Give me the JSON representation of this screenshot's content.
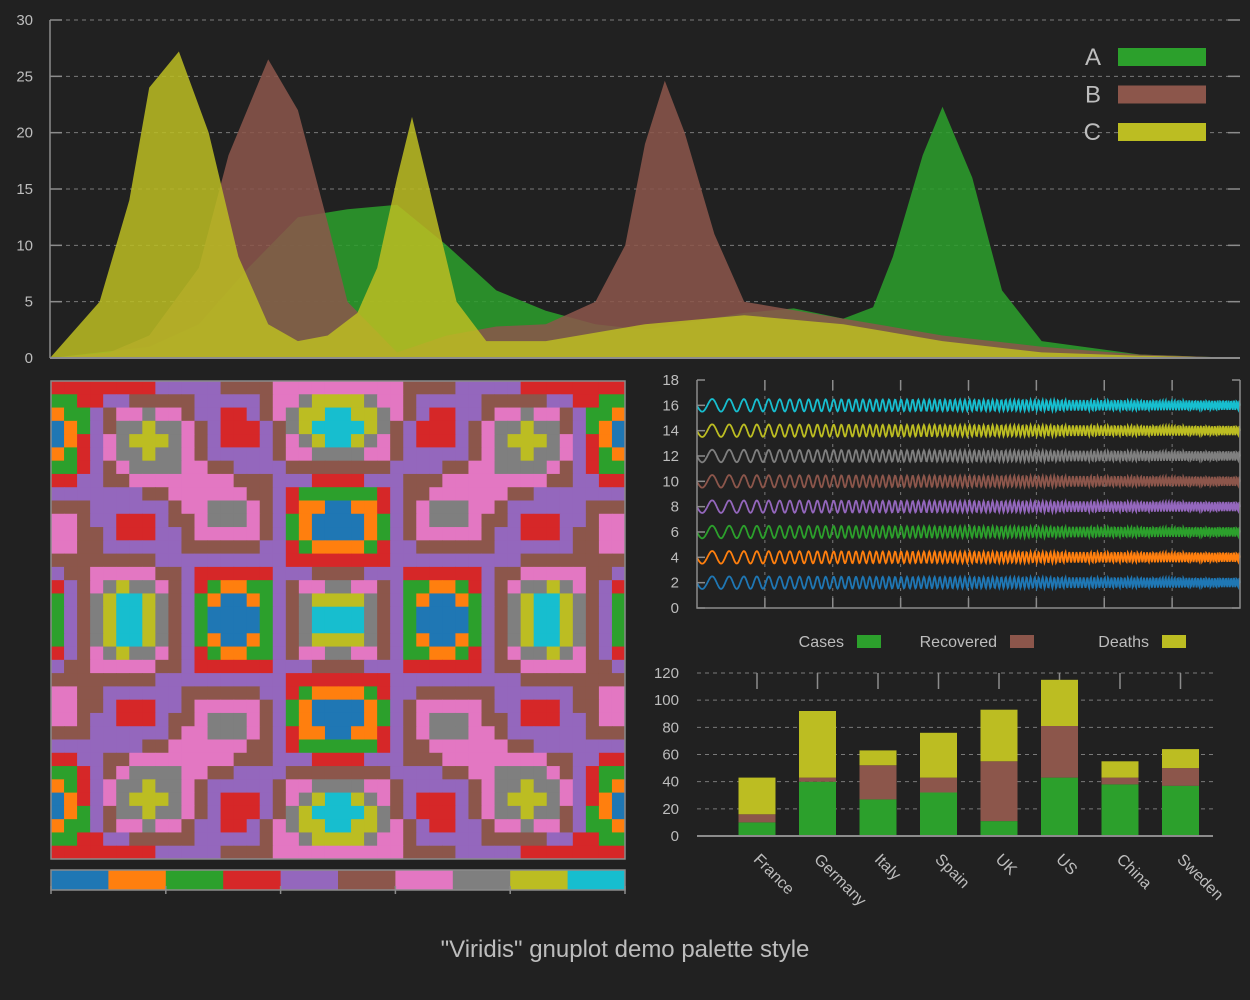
{
  "title": "\"Viridis\" gnuplot demo palette style",
  "colors": {
    "background": "#212121",
    "axis": "#8c8c8c",
    "text": "#bdbdbd",
    "grid": "#7a7a7a",
    "A": "#2ca02c",
    "B": "#8c564b",
    "C": "#bcbd22"
  },
  "chart_data": [
    {
      "type": "area",
      "xlim": [
        0,
        12
      ],
      "ylim": [
        0,
        30
      ],
      "yticks": [
        0,
        5,
        10,
        15,
        20,
        25,
        30
      ],
      "grid": "horizontal dashed",
      "legend_placement": "top-right",
      "series": [
        {
          "name": "A",
          "color": "#2ca02c",
          "x": [
            0,
            1,
            1.5,
            2,
            2.5,
            3,
            3.5,
            4,
            4.5,
            5,
            5.5,
            6,
            7,
            7.5,
            8,
            8.3,
            8.5,
            8.8,
            9,
            9.3,
            9.6,
            10,
            11,
            12
          ],
          "y": [
            0,
            1,
            3,
            8,
            12.5,
            13.2,
            13.6,
            10,
            6,
            4.2,
            3,
            2.5,
            4,
            4.4,
            3.5,
            4.5,
            9,
            18,
            22.3,
            16,
            6,
            1.5,
            0.3,
            0
          ]
        },
        {
          "name": "B",
          "color": "#8c564b",
          "x": [
            0,
            0.6,
            1,
            1.5,
            1.8,
            2.2,
            2.5,
            2.8,
            3,
            3.5,
            4,
            4.5,
            5,
            5.5,
            5.8,
            6,
            6.2,
            6.4,
            6.7,
            7,
            8,
            9,
            10,
            11,
            12
          ],
          "y": [
            0,
            0.5,
            2,
            8,
            18,
            26.5,
            22,
            12,
            5,
            0.5,
            2,
            2.8,
            3,
            5,
            10,
            19,
            24.6,
            20,
            11,
            5,
            3.5,
            2,
            1,
            0.3,
            0
          ]
        },
        {
          "name": "C",
          "color": "#bcbd22",
          "x": [
            0,
            0.5,
            0.8,
            1,
            1.3,
            1.6,
            1.9,
            2.2,
            2.5,
            2.8,
            3.1,
            3.3,
            3.5,
            3.65,
            3.8,
            4.1,
            4.4,
            5,
            6,
            7,
            8,
            9,
            10,
            11,
            12
          ],
          "y": [
            0,
            5,
            14,
            24,
            27.2,
            20,
            9,
            3,
            1.5,
            2,
            4,
            8,
            16,
            21.4,
            16,
            5,
            1.5,
            1.5,
            3,
            3.8,
            3,
            1.5,
            0.5,
            0.2,
            0
          ]
        }
      ]
    },
    {
      "type": "heatmap",
      "palette": [
        "#1f77b4",
        "#ff7f0e",
        "#2ca02c",
        "#d62728",
        "#9467bd",
        "#8c564b",
        "#e377c2",
        "#7f7f7f",
        "#bcbd22",
        "#17becf"
      ],
      "colorbar": true
    },
    {
      "type": "line",
      "ylim": [
        0,
        18
      ],
      "yticks": [
        0,
        2,
        4,
        6,
        8,
        10,
        12,
        14,
        16,
        18
      ],
      "series": [
        {
          "offset": 2,
          "color": "#1f77b4"
        },
        {
          "offset": 4,
          "color": "#ff7f0e"
        },
        {
          "offset": 6,
          "color": "#2ca02c"
        },
        {
          "offset": 8,
          "color": "#9467bd"
        },
        {
          "offset": 10,
          "color": "#8c564b"
        },
        {
          "offset": 12,
          "color": "#7f7f7f"
        },
        {
          "offset": 14,
          "color": "#bcbd22"
        },
        {
          "offset": 16,
          "color": "#17becf"
        }
      ]
    },
    {
      "type": "bar",
      "stacked": true,
      "ylim": [
        0,
        120
      ],
      "yticks": [
        0,
        20,
        40,
        60,
        80,
        100,
        120
      ],
      "legend_placement": "top",
      "categories": [
        "France",
        "Germany",
        "Italy",
        "Spain",
        "UK",
        "US",
        "China",
        "Sweden"
      ],
      "series": [
        {
          "name": "Cases",
          "color": "#2ca02c",
          "values": [
            10,
            40,
            27,
            32,
            11,
            43,
            38,
            37
          ]
        },
        {
          "name": "Recovered",
          "color": "#8c564b",
          "values": [
            6,
            3,
            25,
            11,
            44,
            38,
            5,
            13
          ]
        },
        {
          "name": "Deaths",
          "color": "#bcbd22",
          "values": [
            27,
            49,
            11,
            33,
            38,
            34,
            12,
            14
          ]
        }
      ]
    }
  ]
}
